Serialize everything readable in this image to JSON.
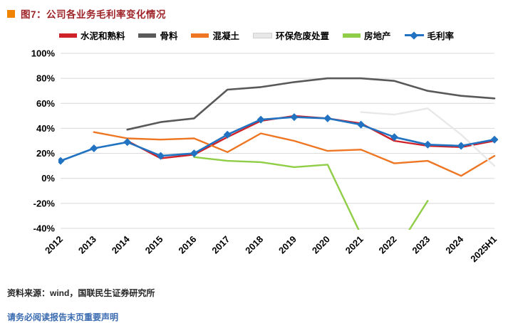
{
  "header": {
    "title": "图7：公司各业务毛利率变化情况",
    "title_color": "#9e2328",
    "bullet_color": "#f08300"
  },
  "chart_data": {
    "type": "line",
    "title": "公司各业务毛利率变化情况",
    "categories": [
      "2012",
      "2013",
      "2014",
      "2015",
      "2016",
      "2017",
      "2018",
      "2019",
      "2020",
      "2021",
      "2022",
      "2023",
      "2024",
      "2025H1"
    ],
    "ylim": [
      -40,
      100
    ],
    "ytick_step": 20,
    "ytick_suffix": "%",
    "grid": true,
    "legend_position": "top",
    "series": [
      {
        "name": "水泥和熟料",
        "color": "#cf2128",
        "width": 2.4,
        "values": [
          null,
          null,
          30,
          16,
          19,
          33,
          46,
          50,
          48,
          44,
          30,
          26,
          25,
          30
        ]
      },
      {
        "name": "骨料",
        "color": "#595959",
        "width": 2.6,
        "values": [
          null,
          null,
          39,
          45,
          48,
          71,
          73,
          77,
          80,
          80,
          78,
          70,
          66,
          64
        ]
      },
      {
        "name": "混凝土",
        "color": "#ee7623",
        "width": 2.4,
        "values": [
          null,
          37,
          32,
          31,
          32,
          21,
          36,
          30,
          22,
          23,
          12,
          14,
          2,
          18
        ]
      },
      {
        "name": "环保危废处置",
        "color": "#e8e8e8",
        "width": 2.4,
        "legend_border": true,
        "values": [
          null,
          null,
          null,
          null,
          null,
          null,
          null,
          null,
          null,
          53,
          51,
          56,
          35,
          10
        ]
      },
      {
        "name": "房地产",
        "color": "#8fce46",
        "width": 2.4,
        "values": [
          null,
          null,
          null,
          null,
          17,
          14,
          13,
          9,
          11,
          -45,
          -60,
          -18,
          null,
          null
        ]
      },
      {
        "name": "毛利率",
        "color": "#2173c2",
        "width": 2.6,
        "marker": "diamond",
        "values": [
          14,
          24,
          29,
          18,
          20,
          35,
          47,
          49,
          48,
          43,
          33,
          27,
          26,
          31
        ]
      }
    ]
  },
  "footer": {
    "source": "资料来源：wind，国联民生证券研究所",
    "disclaimer": "请务必阅读报告末页重要声明"
  }
}
